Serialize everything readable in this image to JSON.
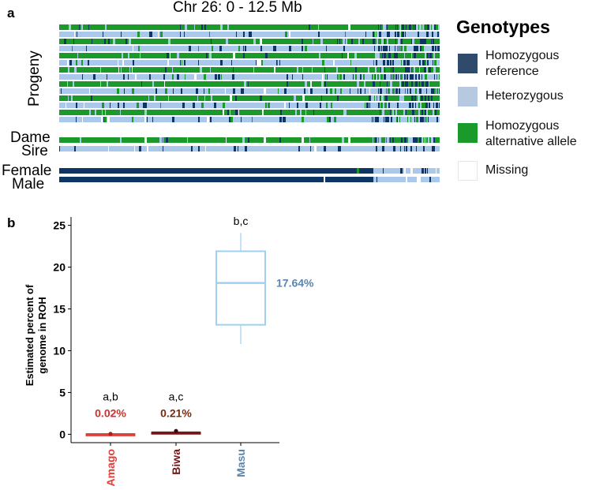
{
  "panel_a": {
    "label": "a",
    "title": "Chr 26: 0 - 12.5 Mb",
    "row_labels": {
      "progeny": "Progeny",
      "dame": "Dame",
      "sire": "Sire",
      "female": "Female",
      "male": "Male"
    },
    "legend": {
      "title": "Genotypes",
      "items": [
        {
          "label_line1": "Homozygous",
          "label_line2": "reference",
          "color": "#2f4a6a"
        },
        {
          "label_line1": "Heterozygous",
          "label_line2": "",
          "color": "#b6c9e0"
        },
        {
          "label_line1": "Homozygous",
          "label_line2": "alternative allele",
          "color": "#1a9a2a"
        },
        {
          "label_line1": "Missing",
          "label_line2": "",
          "color": "#ffffff"
        }
      ]
    },
    "colors": {
      "hom_ref": "#0e3564",
      "het": "#a9c8ea",
      "hom_alt": "#1a9a2a",
      "missing": "#ffffff"
    }
  },
  "panel_b": {
    "label": "b"
  },
  "chart_data": {
    "type": "box",
    "title": "",
    "xlabel": "",
    "ylabel": "Estimated percent of genome in ROH",
    "ylabel_line1": "Estimated percent of",
    "ylabel_line2": "genome in ROH",
    "ylim": [
      -1,
      26
    ],
    "yticks": [
      0,
      5,
      10,
      15,
      20,
      25
    ],
    "grid": false,
    "groups": [
      {
        "name": "Amago",
        "color": "#e0403a",
        "box": {
          "whisker_low": 0,
          "q1": 0,
          "median": 0.02,
          "q3": 0.05,
          "whisker_high": 0.05
        },
        "point": 0.05,
        "mean_label": "0.02%",
        "significance": "a,b"
      },
      {
        "name": "Biwa",
        "color": "#7a1515",
        "box": {
          "whisker_low": 0.15,
          "q1": 0.15,
          "median": 0.21,
          "q3": 0.25,
          "whisker_high": 0.3
        },
        "point": 0.4,
        "mean_label": "0.21%",
        "significance": "a,c"
      },
      {
        "name": "Masu",
        "color": "#9fd0ef",
        "box": {
          "whisker_low": 10.8,
          "q1": 13.1,
          "median": 18.1,
          "q3": 21.9,
          "whisker_high": 24.1
        },
        "point": null,
        "mean_label": "17.64%",
        "significance": "b,c"
      }
    ]
  }
}
